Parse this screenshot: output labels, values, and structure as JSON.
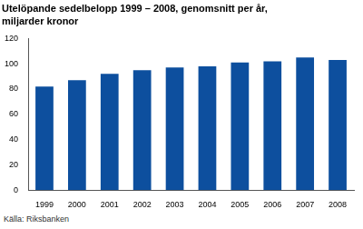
{
  "chart_data": {
    "type": "bar",
    "title": "Utelöpande sedelbelopp 1999 – 2008, genomsnitt per år,",
    "subtitle": "miljarder kronor",
    "source": "Källa: Riksbanken",
    "categories": [
      "1999",
      "2000",
      "2001",
      "2002",
      "2003",
      "2004",
      "2005",
      "2006",
      "2007",
      "2008"
    ],
    "values": [
      82,
      87,
      92,
      95,
      97,
      98,
      101,
      102,
      105,
      103
    ],
    "color": "#0d4f9e",
    "ylim": [
      0,
      120
    ],
    "yticks": [
      0,
      20,
      40,
      60,
      80,
      100,
      120
    ],
    "grid": false
  }
}
